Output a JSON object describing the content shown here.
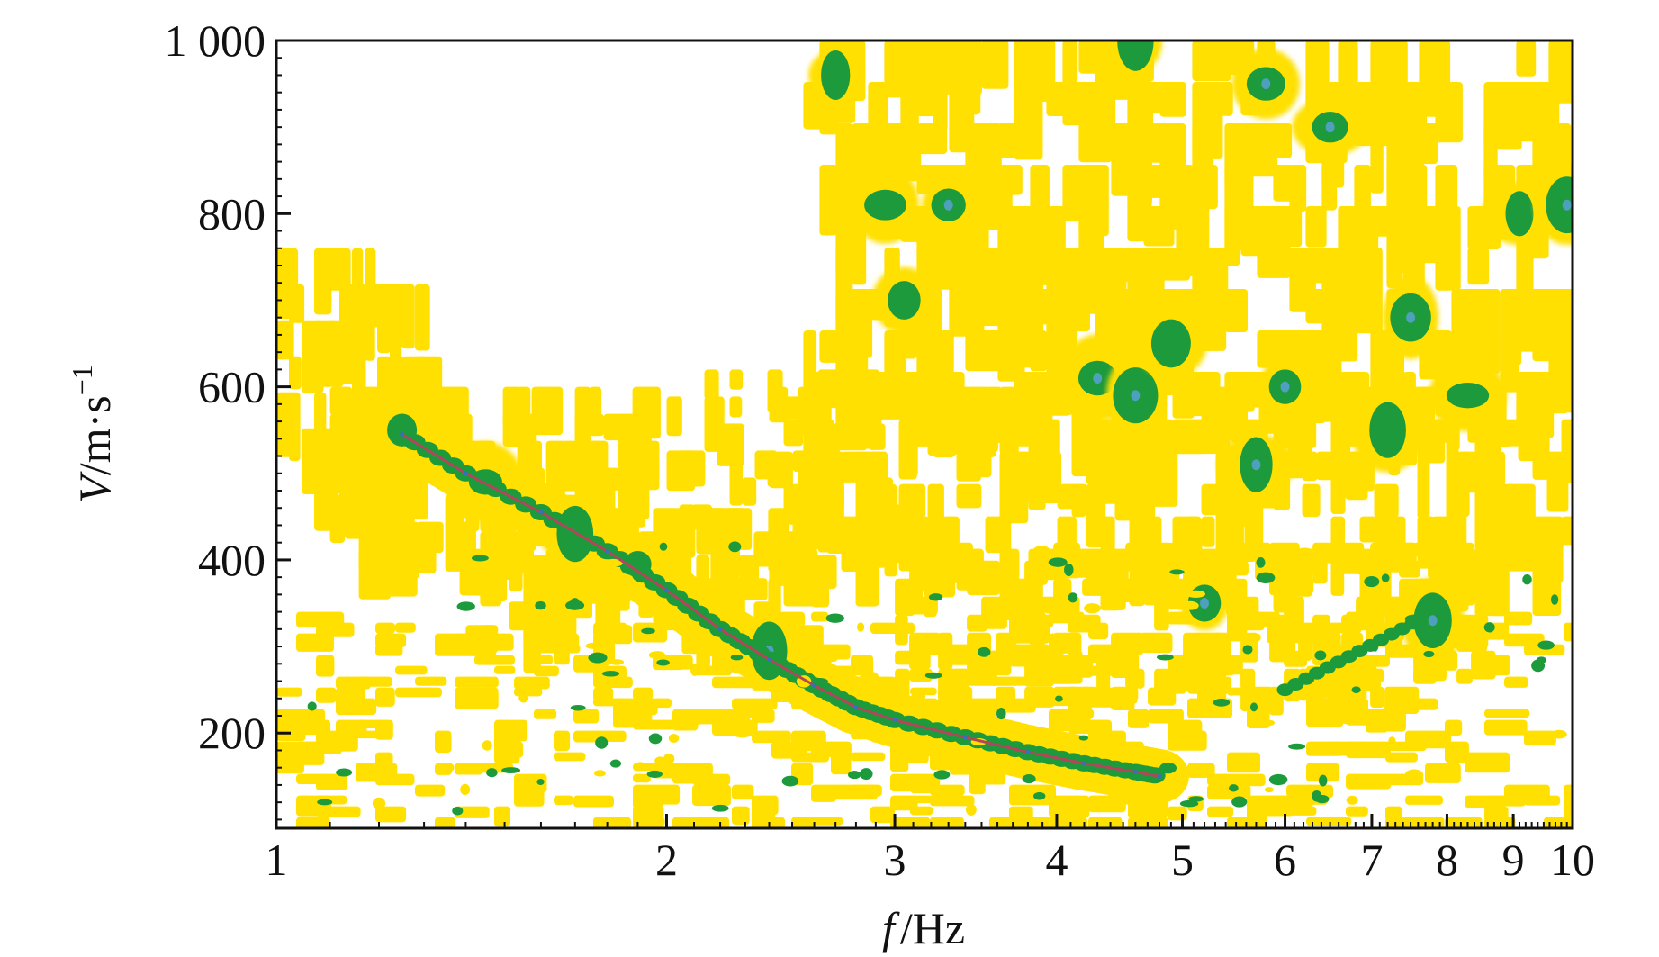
{
  "chart_data": {
    "type": "heatmap",
    "description_of_encoding": "frequency-velocity dispersion image with picked dispersion curve",
    "x_scale": "log",
    "xlim": [
      1,
      10
    ],
    "ylim": [
      90,
      1000
    ],
    "x_ticks_major": [
      1,
      2,
      3,
      4,
      5,
      6,
      7,
      8,
      9,
      10
    ],
    "x_tick_labels": [
      "1",
      "2",
      "3",
      "4",
      "5",
      "6",
      "7",
      "8",
      "9",
      "10"
    ],
    "y_ticks": [
      200,
      400,
      600,
      800,
      1000
    ],
    "y_tick_labels": [
      "200",
      "400",
      "600",
      "800",
      "1 000"
    ],
    "xlabel_var": "f",
    "xlabel_unit": "/Hz",
    "ylabel_var": "V",
    "ylabel_unit": "/m·s",
    "ylabel_exp": "−1",
    "colors": {
      "low_energy": "#ffffff",
      "mid_energy": "#ffe000",
      "high_energy": "#1c9a3c",
      "peak_energy": "#4f9fbf",
      "curve": "#b0475a"
    },
    "dispersion_curve": {
      "x": [
        1.25,
        1.4,
        1.6,
        1.8,
        2.0,
        2.2,
        2.4,
        2.6,
        2.8,
        3.0,
        3.4,
        3.8,
        4.2,
        4.6,
        4.8
      ],
      "y": [
        545,
        500,
        455,
        410,
        365,
        320,
        285,
        255,
        230,
        215,
        195,
        178,
        165,
        155,
        150
      ]
    },
    "energy_blobs_high": [
      {
        "x": 1.25,
        "y": 550
      },
      {
        "x": 1.45,
        "y": 490
      },
      {
        "x": 1.7,
        "y": 430
      },
      {
        "x": 1.9,
        "y": 395
      },
      {
        "x": 2.4,
        "y": 295
      },
      {
        "x": 2.7,
        "y": 960
      },
      {
        "x": 2.95,
        "y": 810
      },
      {
        "x": 3.05,
        "y": 700
      },
      {
        "x": 3.3,
        "y": 810
      },
      {
        "x": 4.3,
        "y": 610
      },
      {
        "x": 4.6,
        "y": 590
      },
      {
        "x": 4.9,
        "y": 650
      },
      {
        "x": 5.8,
        "y": 950
      },
      {
        "x": 5.7,
        "y": 510
      },
      {
        "x": 6.5,
        "y": 900
      },
      {
        "x": 7.2,
        "y": 550
      },
      {
        "x": 7.5,
        "y": 680
      },
      {
        "x": 8.3,
        "y": 590
      },
      {
        "x": 9.1,
        "y": 800
      },
      {
        "x": 9.9,
        "y": 810
      },
      {
        "x": 6.0,
        "y": 600
      },
      {
        "x": 7.8,
        "y": 330
      },
      {
        "x": 5.2,
        "y": 350
      },
      {
        "x": 4.6,
        "y": 1000
      }
    ]
  }
}
